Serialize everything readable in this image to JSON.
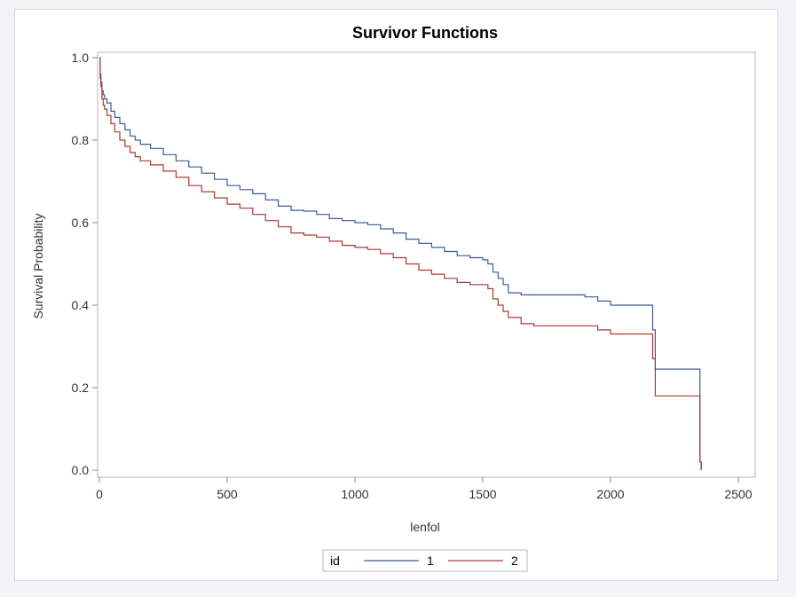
{
  "chart_data": {
    "type": "line",
    "step": true,
    "title": "Survivor Functions",
    "xlabel": "lenfol",
    "ylabel": "Survival Probability",
    "xlim": [
      0,
      2500
    ],
    "ylim": [
      0,
      1.0
    ],
    "xticks": [
      "0",
      "500",
      "1000",
      "1500",
      "2000",
      "2500"
    ],
    "xtick_values": [
      0,
      500,
      1000,
      1500,
      2000,
      2500
    ],
    "yticks": [
      "0.0",
      "0.2",
      "0.4",
      "0.6",
      "0.8",
      "1.0"
    ],
    "ytick_values": [
      0,
      0.2,
      0.4,
      0.6,
      0.8,
      1.0
    ],
    "grid": false,
    "legend": {
      "title": "id",
      "placement": "bottom-center"
    },
    "series": [
      {
        "name": "1",
        "color": "#3d5a98",
        "x": [
          0,
          3,
          6,
          10,
          15,
          20,
          30,
          45,
          60,
          80,
          100,
          120,
          140,
          160,
          200,
          250,
          300,
          350,
          400,
          450,
          500,
          550,
          600,
          650,
          700,
          750,
          800,
          850,
          900,
          950,
          1000,
          1050,
          1100,
          1150,
          1200,
          1250,
          1300,
          1350,
          1400,
          1450,
          1500,
          1520,
          1540,
          1560,
          1580,
          1600,
          1650,
          1700,
          1800,
          1900,
          1950,
          2000,
          2100,
          2165,
          2175,
          2350,
          2355
        ],
        "y": [
          1.0,
          0.96,
          0.94,
          0.92,
          0.91,
          0.9,
          0.89,
          0.87,
          0.855,
          0.84,
          0.825,
          0.81,
          0.8,
          0.79,
          0.78,
          0.765,
          0.75,
          0.735,
          0.72,
          0.705,
          0.69,
          0.68,
          0.67,
          0.655,
          0.64,
          0.63,
          0.628,
          0.62,
          0.61,
          0.605,
          0.6,
          0.595,
          0.585,
          0.575,
          0.56,
          0.55,
          0.54,
          0.53,
          0.52,
          0.515,
          0.51,
          0.5,
          0.48,
          0.465,
          0.45,
          0.43,
          0.425,
          0.425,
          0.425,
          0.42,
          0.41,
          0.4,
          0.4,
          0.34,
          0.245,
          0.02,
          0.0
        ]
      },
      {
        "name": "2",
        "color": "#a83a32",
        "x": [
          0,
          3,
          6,
          10,
          15,
          20,
          30,
          45,
          60,
          80,
          100,
          120,
          140,
          160,
          200,
          250,
          300,
          350,
          400,
          450,
          500,
          550,
          600,
          650,
          700,
          750,
          800,
          850,
          900,
          950,
          1000,
          1050,
          1100,
          1150,
          1200,
          1250,
          1300,
          1350,
          1400,
          1450,
          1500,
          1520,
          1540,
          1560,
          1580,
          1600,
          1650,
          1700,
          1800,
          1900,
          1950,
          2000,
          2100,
          2165,
          2175,
          2350,
          2355
        ],
        "y": [
          1.0,
          0.95,
          0.93,
          0.9,
          0.885,
          0.875,
          0.86,
          0.84,
          0.82,
          0.8,
          0.785,
          0.77,
          0.76,
          0.75,
          0.74,
          0.725,
          0.71,
          0.69,
          0.675,
          0.66,
          0.645,
          0.635,
          0.62,
          0.605,
          0.59,
          0.575,
          0.57,
          0.565,
          0.555,
          0.545,
          0.54,
          0.535,
          0.525,
          0.515,
          0.5,
          0.485,
          0.475,
          0.465,
          0.455,
          0.45,
          0.45,
          0.44,
          0.415,
          0.4,
          0.385,
          0.37,
          0.355,
          0.35,
          0.35,
          0.35,
          0.34,
          0.33,
          0.33,
          0.27,
          0.18,
          0.02,
          0.0
        ]
      }
    ]
  }
}
